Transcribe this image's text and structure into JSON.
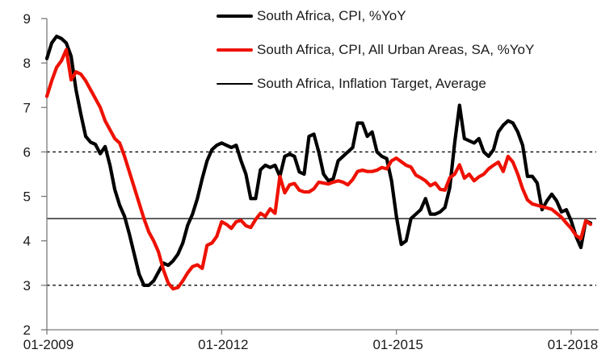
{
  "chart_data": {
    "type": "line",
    "title": "",
    "xlabel": "",
    "ylabel": "",
    "ylim": [
      2,
      9
    ],
    "y_ticks": [
      2,
      3,
      4,
      5,
      6,
      7,
      8,
      9
    ],
    "x_tick_labels": [
      "01-2009",
      "01-2012",
      "01-2015",
      "01-2018"
    ],
    "x_tick_month_index": [
      0,
      36,
      72,
      108
    ],
    "x_start_month": "01-2009",
    "x_end_month": "05-2018",
    "grid": false,
    "legend_position": "top-center",
    "series": [
      {
        "name": "South Africa, CPI, %YoY",
        "color": "#000000",
        "width": 4.2,
        "values": [
          8.1,
          8.45,
          8.6,
          8.55,
          8.45,
          8.15,
          7.4,
          6.85,
          6.35,
          6.22,
          6.17,
          5.96,
          6.12,
          5.7,
          5.15,
          4.8,
          4.55,
          4.15,
          3.7,
          3.25,
          3.0,
          3.0,
          3.1,
          3.3,
          3.5,
          3.45,
          3.55,
          3.7,
          3.95,
          4.35,
          4.6,
          4.95,
          5.4,
          5.8,
          6.05,
          6.15,
          6.2,
          6.15,
          6.1,
          6.15,
          5.8,
          5.5,
          4.95,
          4.95,
          5.6,
          5.7,
          5.65,
          5.7,
          5.45,
          5.9,
          5.95,
          5.9,
          5.55,
          5.5,
          6.35,
          6.4,
          6.0,
          5.5,
          5.35,
          5.4,
          5.8,
          5.9,
          6.0,
          6.1,
          6.65,
          6.65,
          6.35,
          6.45,
          6.0,
          5.9,
          5.85,
          5.35,
          4.55,
          3.92,
          4.0,
          4.5,
          4.6,
          4.7,
          4.95,
          4.6,
          4.6,
          4.65,
          4.75,
          5.2,
          6.2,
          7.05,
          6.3,
          6.25,
          6.2,
          6.3,
          6.0,
          5.9,
          6.05,
          6.45,
          6.6,
          6.7,
          6.65,
          6.45,
          6.15,
          5.45,
          5.45,
          5.3,
          4.7,
          4.9,
          5.05,
          4.9,
          4.65,
          4.7,
          4.45,
          4.1,
          3.85,
          4.45,
          4.4
        ]
      },
      {
        "name": "South Africa, CPI, All Urban Areas, SA, %YoY",
        "color": "#ee1100",
        "width": 4.2,
        "values": [
          7.25,
          7.6,
          7.9,
          8.05,
          8.3,
          7.62,
          7.8,
          7.75,
          7.6,
          7.4,
          7.2,
          7.0,
          6.7,
          6.5,
          6.3,
          6.2,
          5.9,
          5.55,
          5.2,
          4.85,
          4.5,
          4.2,
          4.0,
          3.75,
          3.35,
          3.05,
          2.92,
          2.95,
          3.1,
          3.28,
          3.42,
          3.46,
          3.38,
          3.9,
          3.95,
          4.1,
          4.43,
          4.37,
          4.28,
          4.43,
          4.46,
          4.34,
          4.3,
          4.48,
          4.62,
          4.55,
          4.72,
          4.62,
          5.45,
          5.08,
          5.26,
          5.29,
          5.14,
          5.1,
          5.1,
          5.17,
          5.32,
          5.3,
          5.28,
          5.32,
          5.35,
          5.32,
          5.26,
          5.38,
          5.56,
          5.59,
          5.56,
          5.56,
          5.59,
          5.65,
          5.62,
          5.8,
          5.86,
          5.78,
          5.7,
          5.66,
          5.48,
          5.42,
          5.35,
          5.24,
          5.3,
          5.16,
          5.14,
          5.42,
          5.5,
          5.71,
          5.41,
          5.5,
          5.35,
          5.44,
          5.5,
          5.62,
          5.7,
          5.77,
          5.56,
          5.9,
          5.77,
          5.5,
          5.17,
          4.92,
          4.83,
          4.8,
          4.77,
          4.74,
          4.71,
          4.62,
          4.53,
          4.4,
          4.28,
          4.12,
          4.05,
          4.45,
          4.37
        ]
      }
    ],
    "reference_lines": [
      {
        "name": "South Africa, Inflation Target, Average",
        "value": 4.5,
        "style": "solid",
        "color": "#000000",
        "width": 1.3
      },
      {
        "name": "inflation-target-upper-bound",
        "value": 6,
        "style": "dashed",
        "color": "#000000",
        "width": 1.4
      },
      {
        "name": "inflation-target-lower-bound",
        "value": 3,
        "style": "dashed",
        "color": "#000000",
        "width": 1.4
      }
    ],
    "legend": {
      "items": [
        {
          "label": "South Africa, CPI, %YoY",
          "color": "#000000",
          "line_thickness": 4
        },
        {
          "label": "South Africa, CPI, All Urban Areas, SA, %YoY",
          "color": "#ee1100",
          "line_thickness": 4
        },
        {
          "label": "South Africa, Inflation Target, Average",
          "color": "#000000",
          "line_thickness": 1.5
        }
      ]
    }
  },
  "colors": {
    "background": "#ffffff",
    "axis": "#7a7a7a",
    "tick_text": "#1a1a1a",
    "reference": "#000000"
  }
}
